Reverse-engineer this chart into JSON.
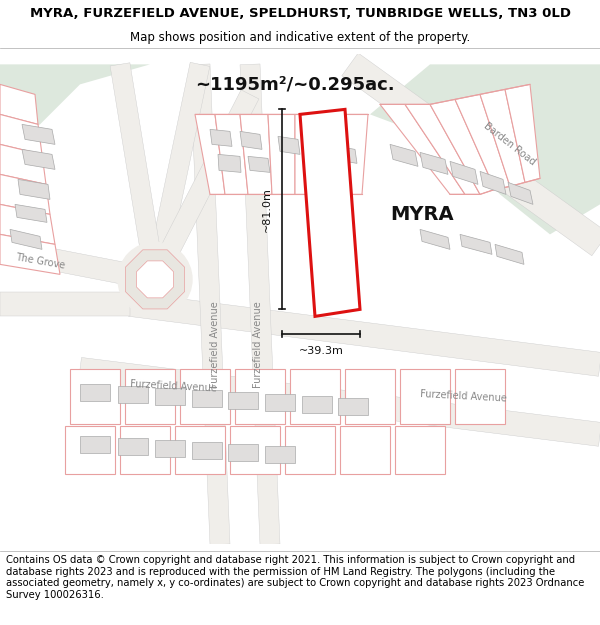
{
  "title_line1": "MYRA, FURZEFIELD AVENUE, SPELDHURST, TUNBRIDGE WELLS, TN3 0LD",
  "title_line2": "Map shows position and indicative extent of the property.",
  "area_text": "~1195m²/~0.295ac.",
  "label_text": "MYRA",
  "dim_vertical": "~81.0m",
  "dim_horizontal": "~39.3m",
  "footer_text": "Contains OS data © Crown copyright and database right 2021. This information is subject to Crown copyright and database rights 2023 and is reproduced with the permission of HM Land Registry. The polygons (including the associated geometry, namely x, y co-ordinates) are subject to Crown copyright and database rights 2023 Ordnance Survey 100026316.",
  "map_bg": "#f5f3f0",
  "map_bg_white": "#ffffff",
  "green_area": "#dde8dd",
  "road_fill": "#e8e6e0",
  "building_fill": "#e0dedd",
  "building_edge": "#aaaaaa",
  "plot_line_color": "#e8a0a0",
  "highlight_color": "#dd1111",
  "dim_line_color": "#111111",
  "label_color": "#111111",
  "road_label_color": "#888888",
  "title_fontsize": 9.5,
  "subtitle_fontsize": 8.5,
  "label_fontsize": 14,
  "area_fontsize": 13,
  "dim_fontsize": 8,
  "road_fontsize": 7,
  "footer_fontsize": 7.2,
  "road_label_barden": "Barden Road",
  "road_label_grove": "The Grove",
  "road_label_furzefield_bottom": "Furzefield Avenue",
  "road_label_furzefield_right": "Furzefield Avenue",
  "road_label_furzefield_left": "Furzefield Avenue",
  "road_label_speldhurst": "Furzefield Avenue"
}
